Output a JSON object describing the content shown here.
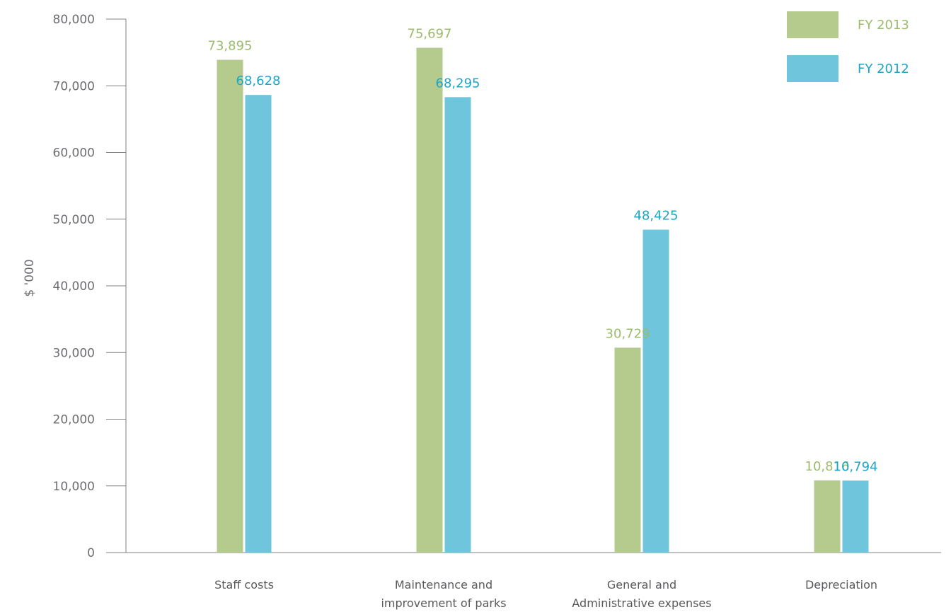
{
  "chart_data": {
    "type": "bar",
    "title": "",
    "xlabel": "",
    "ylabel": "$ '000",
    "ylim": [
      0,
      80000
    ],
    "yticks": [
      0,
      10000,
      20000,
      30000,
      40000,
      50000,
      60000,
      70000,
      80000
    ],
    "ytick_labels": [
      "0",
      "10,000",
      "20,000",
      "30,000",
      "40,000",
      "50,000",
      "60,000",
      "70,000",
      "80,000"
    ],
    "categories": [
      [
        "Staff costs"
      ],
      [
        "Maintenance and",
        "improvement of parks"
      ],
      [
        "General and",
        "Administrative expenses"
      ],
      [
        "Depreciation"
      ]
    ],
    "series": [
      {
        "name": "FY 2013",
        "color": "#b5ca8d",
        "label_color": "#9cbb6c",
        "values": [
          73895,
          75697,
          30729,
          10816
        ],
        "labels": [
          "73,895",
          "75,697",
          "30,729",
          "10,816"
        ]
      },
      {
        "name": "FY 2012",
        "color": "#6fc6dc",
        "label_color": "#1ba5c9",
        "values": [
          68628,
          68295,
          48425,
          10794
        ],
        "labels": [
          "68,628",
          "68,295",
          "48,425",
          "10,794"
        ]
      }
    ],
    "grid": false,
    "legend": "top-right",
    "axis_color": "#808285"
  }
}
